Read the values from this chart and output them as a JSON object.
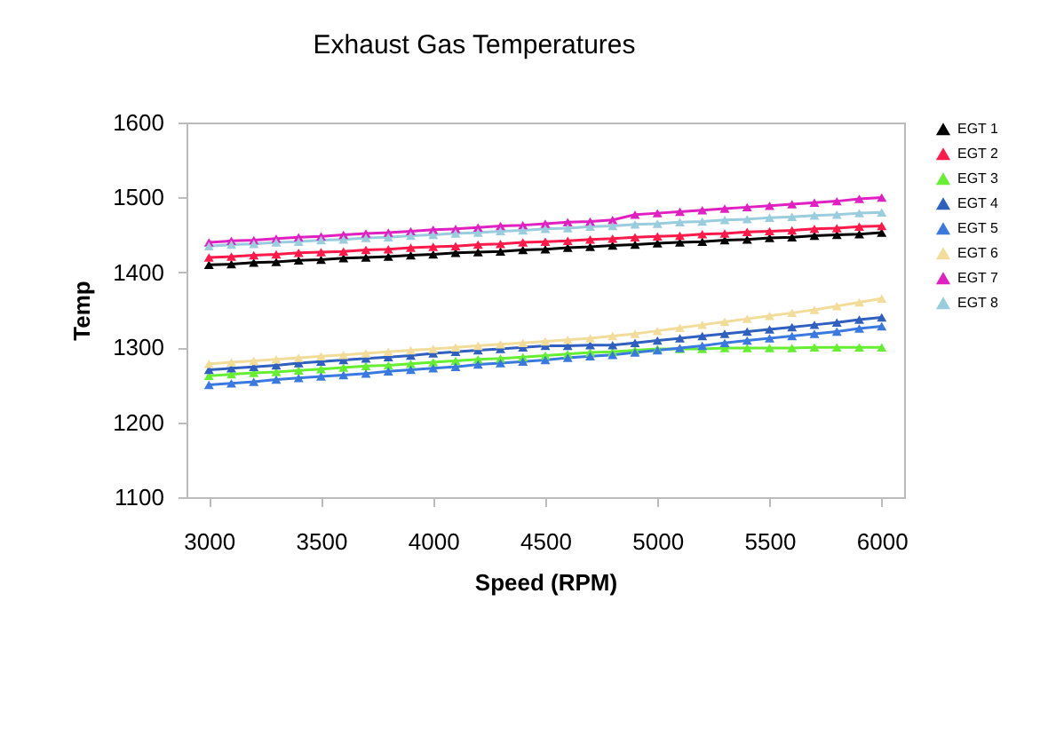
{
  "chart_data": {
    "type": "line",
    "title": "Exhaust Gas Temperatures",
    "xlabel": "Speed (RPM)",
    "ylabel": "Temp",
    "x": [
      3000,
      3100,
      3200,
      3300,
      3400,
      3500,
      3600,
      3700,
      3800,
      3900,
      4000,
      4100,
      4200,
      4300,
      4400,
      4500,
      4600,
      4700,
      4800,
      4900,
      5000,
      5100,
      5200,
      5300,
      5400,
      5500,
      5600,
      5700,
      5800,
      5900,
      6000
    ],
    "series": [
      {
        "name": "EGT 1",
        "color": "#000000",
        "values": [
          1410,
          1411,
          1413,
          1414,
          1416,
          1417,
          1419,
          1420,
          1421,
          1423,
          1424,
          1426,
          1427,
          1428,
          1430,
          1431,
          1433,
          1434,
          1436,
          1437,
          1439,
          1440,
          1441,
          1443,
          1444,
          1446,
          1447,
          1449,
          1450,
          1451,
          1453
        ]
      },
      {
        "name": "EGT 2",
        "color": "#ff1a4a",
        "values": [
          1420,
          1421,
          1423,
          1424,
          1426,
          1427,
          1428,
          1430,
          1431,
          1433,
          1434,
          1435,
          1437,
          1438,
          1440,
          1441,
          1442,
          1444,
          1445,
          1447,
          1448,
          1449,
          1451,
          1452,
          1454,
          1455,
          1456,
          1458,
          1459,
          1461,
          1462
        ]
      },
      {
        "name": "EGT 3",
        "color": "#66ee33",
        "values": [
          1262,
          1264,
          1266,
          1267,
          1269,
          1271,
          1273,
          1275,
          1276,
          1278,
          1280,
          1282,
          1284,
          1285,
          1287,
          1289,
          1291,
          1293,
          1294,
          1296,
          1298,
          1298,
          1298,
          1299,
          1299,
          1299,
          1299,
          1300,
          1300,
          1300,
          1300
        ]
      },
      {
        "name": "EGT 4",
        "color": "#2f5fbf",
        "values": [
          1270,
          1272,
          1274,
          1276,
          1279,
          1281,
          1283,
          1285,
          1287,
          1289,
          1292,
          1294,
          1296,
          1298,
          1300,
          1302,
          1302,
          1303,
          1303,
          1306,
          1309,
          1312,
          1315,
          1318,
          1321,
          1324,
          1327,
          1330,
          1333,
          1337,
          1340
        ]
      },
      {
        "name": "EGT 5",
        "color": "#3a7ae0",
        "values": [
          1250,
          1252,
          1254,
          1257,
          1259,
          1261,
          1263,
          1265,
          1268,
          1270,
          1272,
          1274,
          1277,
          1279,
          1281,
          1283,
          1286,
          1288,
          1290,
          1293,
          1296,
          1299,
          1302,
          1306,
          1309,
          1312,
          1315,
          1318,
          1321,
          1325,
          1328
        ]
      },
      {
        "name": "EGT 6",
        "color": "#f2dc9a",
        "values": [
          1278,
          1280,
          1282,
          1284,
          1286,
          1288,
          1290,
          1292,
          1294,
          1296,
          1298,
          1300,
          1302,
          1304,
          1306,
          1308,
          1310,
          1312,
          1315,
          1318,
          1322,
          1326,
          1330,
          1334,
          1338,
          1342,
          1346,
          1350,
          1355,
          1360,
          1365
        ]
      },
      {
        "name": "EGT 7",
        "color": "#e020c0",
        "values": [
          1440,
          1442,
          1443,
          1445,
          1447,
          1448,
          1450,
          1452,
          1453,
          1455,
          1457,
          1458,
          1460,
          1462,
          1463,
          1465,
          1467,
          1468,
          1470,
          1477,
          1479,
          1481,
          1483,
          1485,
          1487,
          1489,
          1491,
          1493,
          1495,
          1498,
          1500
        ]
      },
      {
        "name": "EGT 8",
        "color": "#99ccdd",
        "values": [
          1435,
          1437,
          1438,
          1440,
          1441,
          1443,
          1444,
          1446,
          1447,
          1449,
          1450,
          1452,
          1453,
          1455,
          1456,
          1458,
          1459,
          1461,
          1462,
          1464,
          1465,
          1467,
          1468,
          1470,
          1471,
          1473,
          1474,
          1476,
          1477,
          1479,
          1480
        ]
      }
    ],
    "xlim": [
      2900,
      6100
    ],
    "xticks": [
      3000,
      3500,
      4000,
      4500,
      5000,
      5500,
      6000
    ],
    "ylim": [
      1100,
      1600
    ],
    "yticks": [
      1100,
      1200,
      1300,
      1400,
      1500,
      1600
    ],
    "grid": false,
    "legend": "right",
    "marker": "triangle",
    "line_style": "solid"
  }
}
